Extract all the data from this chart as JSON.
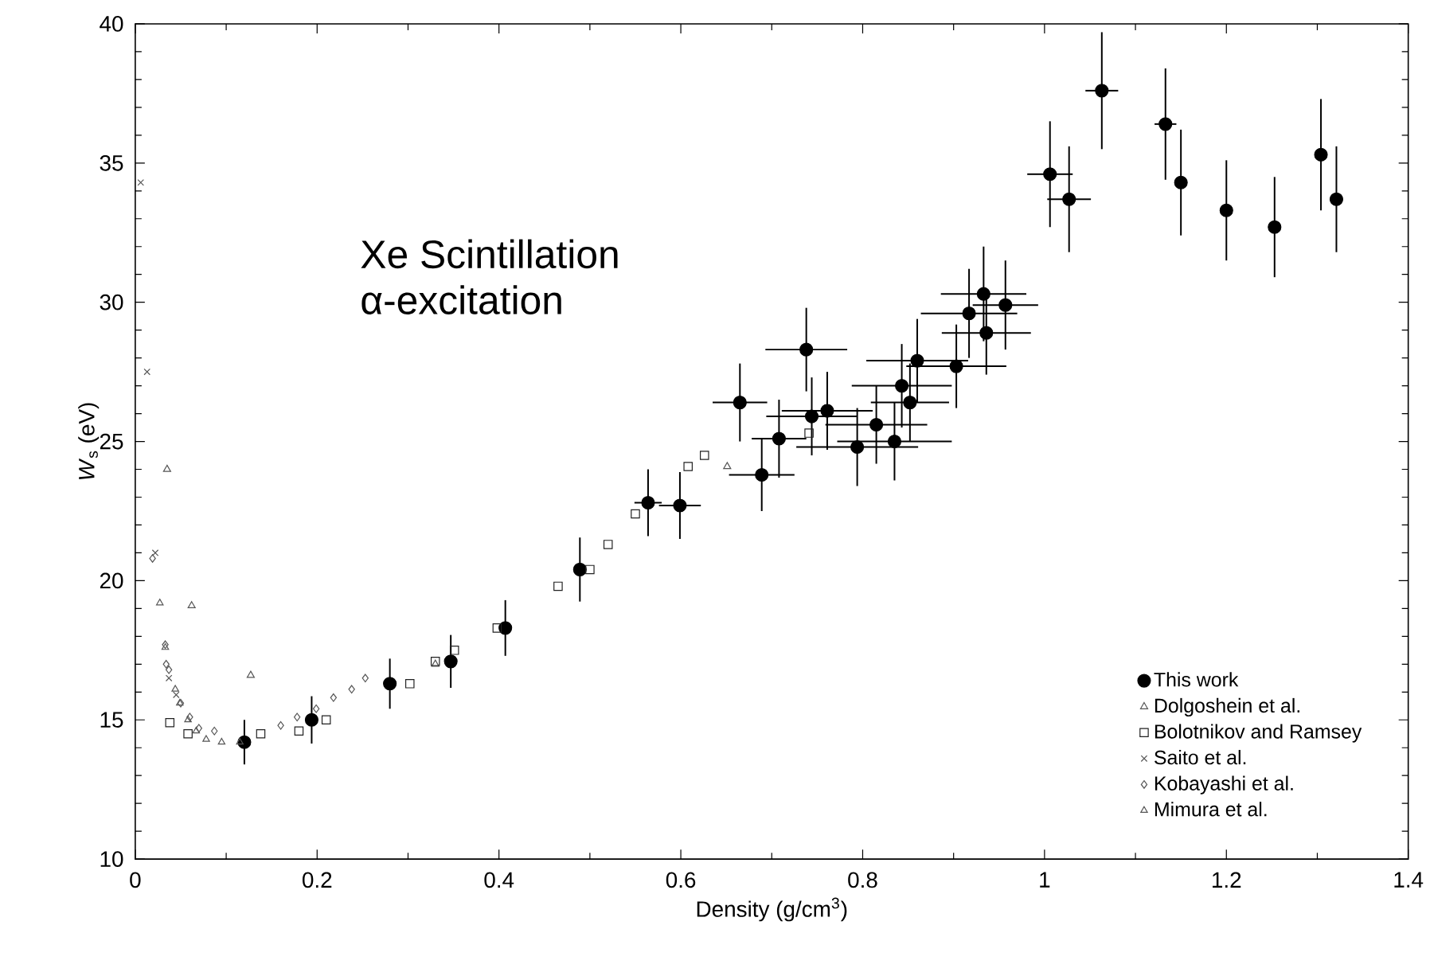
{
  "chart_data": {
    "type": "scatter",
    "xlabel": "Density (g/cm$^{3}$)",
    "ylabel": "*W*$_{s}$ (eV)",
    "annotations": [
      "Xe Scintillation",
      "α-excitation"
    ],
    "xlim": [
      0,
      1.4
    ],
    "ylim": [
      10,
      40
    ],
    "xticks": [
      0,
      0.2,
      0.4,
      0.6,
      0.8,
      1,
      1.2,
      1.4
    ],
    "yticks": [
      10,
      15,
      20,
      25,
      30,
      35,
      40
    ],
    "legend": "bottom right",
    "series": [
      {
        "name": "This work",
        "color": "#000000",
        "marker": "circle",
        "x": [
          0.12,
          0.194,
          0.28,
          0.347,
          0.407,
          0.489,
          0.564,
          0.599,
          0.665,
          0.689,
          0.708,
          0.738,
          0.744,
          0.761,
          0.794,
          0.815,
          0.835,
          0.843,
          0.852,
          0.86,
          0.903,
          0.917,
          0.933,
          0.936,
          0.957,
          1.006,
          1.027,
          1.063,
          1.133,
          1.15,
          1.2,
          1.253,
          1.304,
          1.321
        ],
        "values": [
          14.2,
          15.0,
          16.3,
          17.1,
          18.3,
          20.4,
          22.8,
          22.7,
          26.4,
          23.8,
          25.1,
          28.3,
          25.9,
          26.1,
          24.8,
          25.6,
          25.0,
          27.0,
          26.4,
          27.9,
          27.7,
          29.6,
          30.3,
          28.9,
          29.9,
          34.6,
          33.7,
          37.6,
          36.4,
          34.3,
          33.3,
          32.7,
          35.3,
          33.7
        ],
        "errors": [
          0.8,
          0.85,
          0.9,
          0.95,
          1.0,
          1.15,
          1.2,
          1.2,
          1.4,
          1.3,
          1.4,
          1.5,
          1.4,
          1.4,
          1.4,
          1.4,
          1.4,
          1.5,
          1.4,
          1.5,
          1.5,
          1.6,
          1.7,
          1.5,
          1.6,
          1.9,
          1.9,
          2.1,
          2.0,
          1.9,
          1.8,
          1.8,
          2.0,
          1.9
        ],
        "xerrors": [
          null,
          null,
          null,
          null,
          null,
          null,
          0.015,
          0.023,
          0.03,
          0.036,
          0.03,
          0.045,
          0.05,
          0.05,
          0.067,
          0.056,
          0.063,
          0.055,
          0.043,
          0.056,
          0.055,
          0.053,
          0.047,
          0.049,
          0.036,
          0.025,
          0.024,
          0.018,
          0.012,
          null,
          null,
          null,
          null,
          null
        ]
      },
      {
        "name": "Dolgoshein et al.",
        "color": "#555555",
        "marker": "triangle down",
        "x": [
          0.035,
          0.062,
          0.127,
          0.33,
          0.651
        ],
        "values": [
          24.0,
          19.1,
          16.6,
          17.0,
          24.1
        ]
      },
      {
        "name": "Bolotnikov and Ramsey",
        "color": "#222222",
        "marker": "square",
        "x": [
          0.038,
          0.058,
          0.138,
          0.18,
          0.21,
          0.302,
          0.33,
          0.351,
          0.398,
          0.465,
          0.5,
          0.52,
          0.55,
          0.608,
          0.626,
          0.741
        ],
        "values": [
          14.9,
          14.5,
          14.5,
          14.6,
          15.0,
          16.3,
          17.1,
          17.5,
          18.3,
          19.8,
          20.4,
          21.3,
          22.4,
          24.1,
          24.5,
          25.3
        ]
      },
      {
        "name": "Saito et al.",
        "color": "#555555",
        "marker": "cross",
        "x": [
          0.006,
          0.013,
          0.022,
          0.037,
          0.045
        ],
        "values": [
          34.3,
          27.5,
          21.0,
          16.5,
          15.9
        ]
      },
      {
        "name": "Kobayashi et al.",
        "color": "#555555",
        "marker": "diamond",
        "x": [
          0.019,
          0.033,
          0.034,
          0.037,
          0.05,
          0.06,
          0.07,
          0.087,
          0.16,
          0.178,
          0.199,
          0.218,
          0.238,
          0.253
        ],
        "values": [
          20.8,
          17.7,
          17.0,
          16.8,
          15.6,
          15.1,
          14.7,
          14.6,
          14.8,
          15.1,
          15.4,
          15.8,
          16.1,
          16.5
        ]
      },
      {
        "name": "Mimura et al.",
        "color": "#555555",
        "marker": "triangle",
        "x": [
          0.027,
          0.033,
          0.044,
          0.049,
          0.058,
          0.067,
          0.078,
          0.095,
          0.115
        ],
        "values": [
          19.2,
          17.6,
          16.1,
          15.6,
          15.0,
          14.6,
          14.3,
          14.2,
          14.2
        ]
      }
    ]
  }
}
